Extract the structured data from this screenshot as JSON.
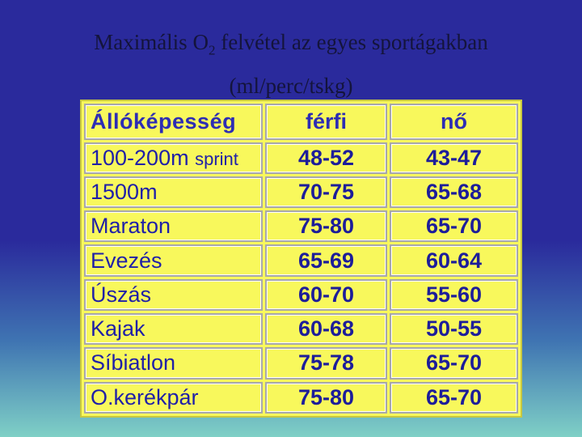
{
  "title": {
    "line1_before": "Maximális O",
    "subscript": "2",
    "line1_after": " felvétel az egyes sportágakban",
    "line2": "(ml/perc/tskg)"
  },
  "table": {
    "header": [
      "Állóképesség",
      "férfi",
      "nő"
    ],
    "rows": [
      {
        "sport": "100-200m",
        "note": "sprint",
        "male": "48-52",
        "female": "43-47"
      },
      {
        "sport": "1500m",
        "male": "70-75",
        "female": "65-68"
      },
      {
        "sport": "Maraton",
        "male": "75-80",
        "female": "65-70"
      },
      {
        "sport": "Evezés",
        "male": "65-69",
        "female": "60-64"
      },
      {
        "sport": "Úszás",
        "male": "60-70",
        "female": "55-60"
      },
      {
        "sport": "Kajak",
        "male": "60-68",
        "female": "50-55"
      },
      {
        "sport": "Síbiatlon",
        "male": "75-78",
        "female": "65-70"
      },
      {
        "sport": "O.kerékpár",
        "male": "75-80",
        "female": "65-70"
      }
    ]
  }
}
